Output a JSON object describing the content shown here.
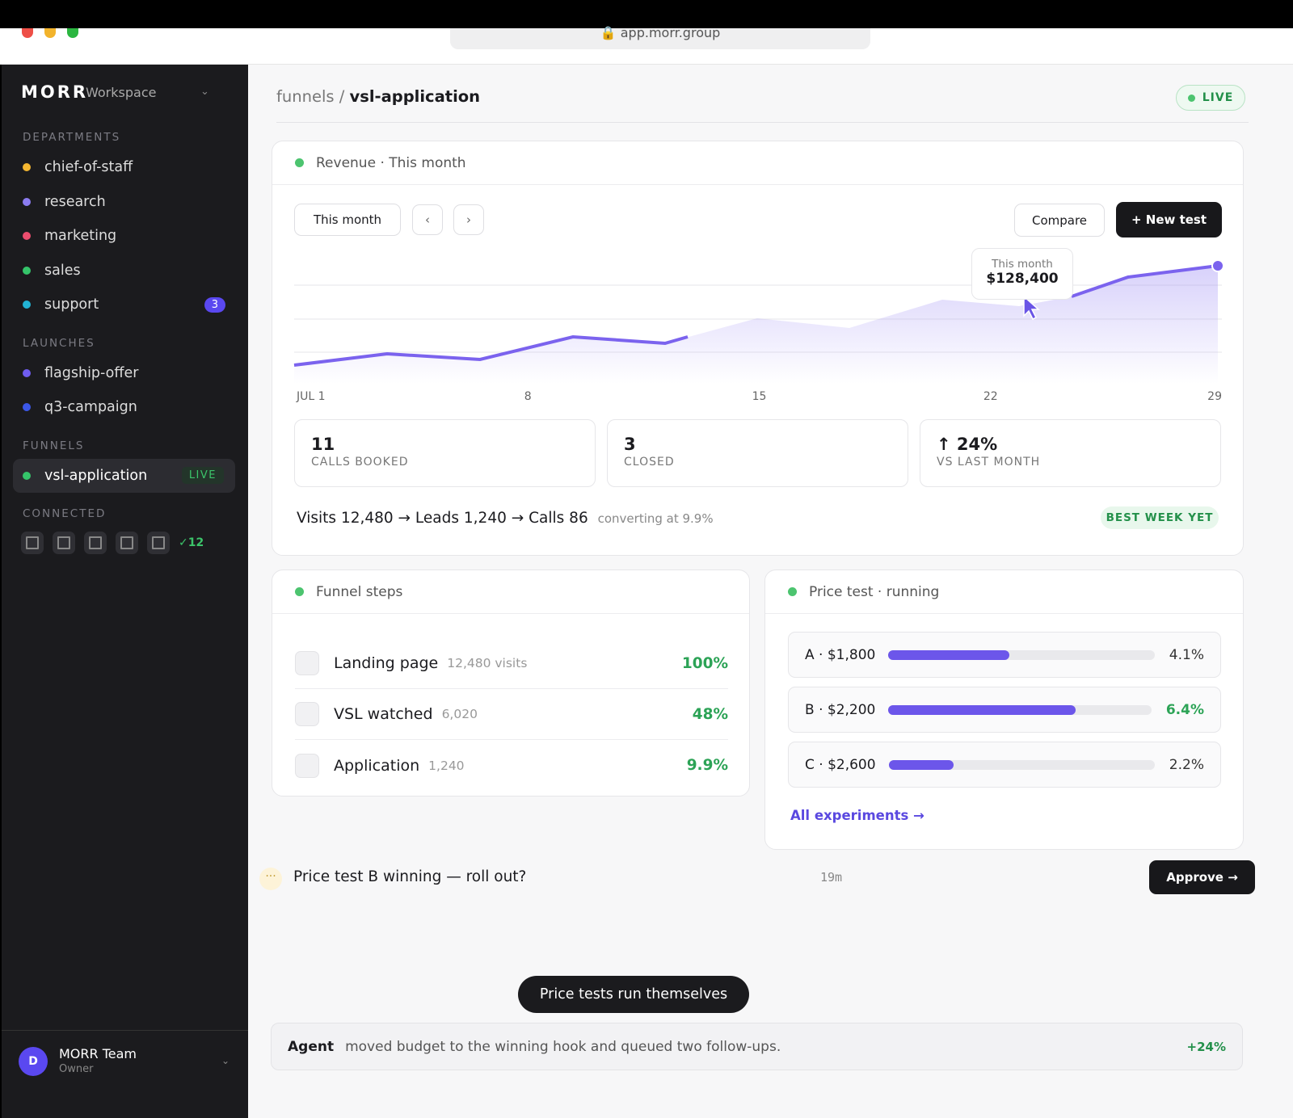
{
  "browser": {
    "url": "app.morr.group"
  },
  "sidebar": {
    "brand": "MORR",
    "workspace": "Workspace",
    "sections": [
      {
        "title": "DEPARTMENTS",
        "items": [
          {
            "label": "chief-of-staff",
            "color": "#f5b731"
          },
          {
            "label": "research",
            "color": "#8b7cf0"
          },
          {
            "label": "marketing",
            "color": "#ec4d6e"
          },
          {
            "label": "sales",
            "color": "#35c46a"
          },
          {
            "label": "support",
            "color": "#22b3d4",
            "badge": "3"
          }
        ]
      },
      {
        "title": "LAUNCHES",
        "items": [
          {
            "label": "flagship-offer",
            "color": "#6f5cf0"
          },
          {
            "label": "q3-campaign",
            "color": "#3b57e8"
          }
        ]
      },
      {
        "title": "FUNNELS",
        "items": [
          {
            "label": "vsl-application",
            "color": "#35c46a",
            "badge": "LIVE",
            "active": true
          }
        ]
      }
    ],
    "connected": {
      "title": "CONNECTED",
      "count": "✓12"
    },
    "user": {
      "initial": "D",
      "name": "MORR Team",
      "role": "Owner"
    }
  },
  "header": {
    "breadcrumb_parent": "funnels /",
    "breadcrumb_current": "vsl-application",
    "status": "LIVE"
  },
  "revenue": {
    "title": "Revenue · This month",
    "period": "This month",
    "prev": "‹",
    "next": "›",
    "compare": "Compare",
    "new_test": "+ New test",
    "tooltip_label": "This month",
    "tooltip_value": "$128,400",
    "x_labels": [
      "JUL 1",
      "8",
      "15",
      "22",
      "29"
    ],
    "stats": [
      {
        "value": "11",
        "label": "CALLS BOOKED"
      },
      {
        "value": "3",
        "label": "CLOSED"
      },
      {
        "value": "↑ 24%",
        "label": "VS LAST MONTH"
      }
    ],
    "flow": "Visits 12,480 → Leads 1,240 → Calls 86",
    "flow_note": "converting at 9.9%",
    "badge": "BEST WEEK YET"
  },
  "funnel_steps": {
    "title": "Funnel steps",
    "steps": [
      {
        "name": "Landing page",
        "count": "12,480 visits",
        "pct": "100%"
      },
      {
        "name": "VSL watched",
        "count": "6,020",
        "pct": "48%"
      },
      {
        "name": "Application",
        "count": "1,240",
        "pct": "9.9%"
      }
    ]
  },
  "price_test": {
    "title": "Price test · running",
    "xlim": [
      0,
      9
    ],
    "variants": [
      {
        "label": "A · $1,800",
        "value": 4.1,
        "value_label": "4.1%",
        "winner": false
      },
      {
        "label": "B · $2,200",
        "value": 6.4,
        "value_label": "6.4%",
        "winner": true
      },
      {
        "label": "C · $2,600",
        "value": 2.2,
        "value_label": "2.2%",
        "winner": false
      }
    ],
    "link": "All experiments →"
  },
  "notification": {
    "text": "Price test B winning — roll out?",
    "time": "19m",
    "action": "Approve →"
  },
  "caption": "Price tests run themselves",
  "agent": {
    "name": "Agent",
    "text": "moved budget to the winning hook and queued two follow-ups.",
    "delta": "+24%"
  }
}
